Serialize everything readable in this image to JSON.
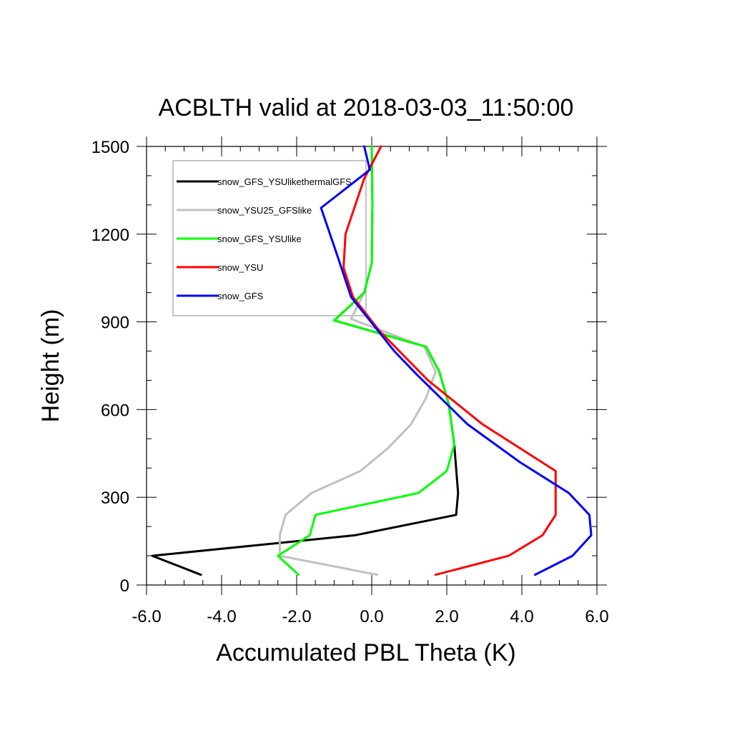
{
  "chart_data": {
    "type": "line",
    "title": "ACBLTH valid at 2018-03-03_11:50:00",
    "xlabel": "Accumulated PBL Theta (K)",
    "ylabel": "Height (m)",
    "xlim": [
      -6.0,
      6.0
    ],
    "ylim": [
      0,
      1500
    ],
    "x_ticks": [
      -6.0,
      -4.0,
      -2.0,
      0.0,
      2.0,
      4.0,
      6.0
    ],
    "x_tick_labels": [
      "-6.0",
      "-4.0",
      "-2.0",
      "0.0",
      "2.0",
      "4.0",
      "6.0"
    ],
    "y_ticks": [
      0,
      300,
      600,
      900,
      1200,
      1500
    ],
    "y_tick_labels": [
      "0",
      "300",
      "600",
      "900",
      "1200",
      "1500"
    ],
    "legend_position": "top-left",
    "grid": false,
    "series": [
      {
        "name": "snow_GFS_YSUlikethermalGFS",
        "color": "#000000",
        "points": [
          [
            -4.55,
            35
          ],
          [
            -5.85,
            100
          ],
          [
            -0.45,
            170
          ],
          [
            2.25,
            240
          ],
          [
            2.3,
            315
          ],
          [
            2.2,
            480
          ],
          [
            2.05,
            620
          ],
          [
            1.8,
            730
          ],
          [
            1.45,
            815
          ],
          [
            -1.0,
            905
          ],
          [
            -0.2,
            1000
          ],
          [
            0.0,
            1100
          ],
          [
            0.02,
            1300
          ],
          [
            0.0,
            1500
          ]
        ]
      },
      {
        "name": "snow_YSU25_GFSlike",
        "color": "#c0c0c0",
        "points": [
          [
            0.15,
            35
          ],
          [
            -2.45,
            100
          ],
          [
            -2.45,
            170
          ],
          [
            -2.3,
            240
          ],
          [
            -1.6,
            315
          ],
          [
            -0.3,
            390
          ],
          [
            0.45,
            470
          ],
          [
            1.05,
            550
          ],
          [
            1.45,
            640
          ],
          [
            1.7,
            730
          ],
          [
            1.4,
            815
          ],
          [
            -0.55,
            910
          ],
          [
            -0.2,
            1000
          ],
          [
            0.0,
            1100
          ],
          [
            0.02,
            1300
          ],
          [
            0.0,
            1500
          ]
        ]
      },
      {
        "name": "snow_GFS_YSUlike",
        "color": "#00ff00",
        "points": [
          [
            -1.95,
            35
          ],
          [
            -2.5,
            100
          ],
          [
            -1.65,
            170
          ],
          [
            -1.5,
            240
          ],
          [
            1.25,
            315
          ],
          [
            2.0,
            390
          ],
          [
            2.2,
            480
          ],
          [
            2.05,
            620
          ],
          [
            1.8,
            730
          ],
          [
            1.45,
            815
          ],
          [
            -1.0,
            905
          ],
          [
            -0.2,
            1000
          ],
          [
            0.0,
            1100
          ],
          [
            0.02,
            1300
          ],
          [
            0.0,
            1500
          ]
        ]
      },
      {
        "name": "snow_YSU",
        "color": "#ff0000",
        "points": [
          [
            1.7,
            35
          ],
          [
            3.65,
            100
          ],
          [
            4.55,
            170
          ],
          [
            4.9,
            240
          ],
          [
            4.9,
            390
          ],
          [
            2.95,
            550
          ],
          [
            1.5,
            700
          ],
          [
            0.2,
            870
          ],
          [
            -0.5,
            985
          ],
          [
            -0.75,
            1085
          ],
          [
            -0.7,
            1200
          ],
          [
            -0.2,
            1390
          ],
          [
            0.25,
            1500
          ]
        ]
      },
      {
        "name": "snow_GFS",
        "color": "#0000ff",
        "points": [
          [
            4.35,
            35
          ],
          [
            5.35,
            100
          ],
          [
            5.85,
            170
          ],
          [
            5.8,
            240
          ],
          [
            5.25,
            315
          ],
          [
            3.95,
            420
          ],
          [
            2.55,
            550
          ],
          [
            1.2,
            720
          ],
          [
            0.6,
            800
          ],
          [
            -0.55,
            985
          ],
          [
            -0.9,
            1120
          ],
          [
            -1.35,
            1290
          ],
          [
            -0.05,
            1420
          ],
          [
            -0.2,
            1500
          ]
        ]
      }
    ]
  }
}
